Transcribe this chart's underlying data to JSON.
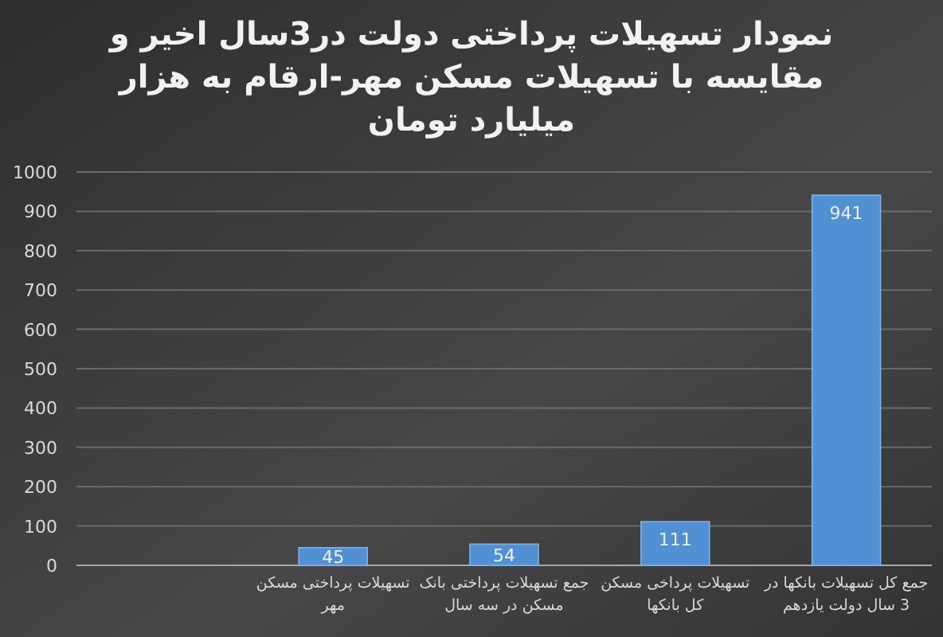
{
  "chart_data": {
    "type": "bar",
    "title": "نمودار تسهیلات پرداختی دولت در3سال اخیر و مقایسه با تسهیلات مسکن مهر-ارقام به هزار میلیارد تومان",
    "categories": [
      null,
      "تسهیلات پرداختی مسکن مهر",
      "جمع تسهیلات پرداختی بانک مسکن در سه سال",
      "تسهیلات پرداخی مسکن کل بانکها",
      "جمع کل تسهیلات بانکها در 3 سال دولت یازدهم"
    ],
    "values": [
      null,
      45,
      54,
      111,
      941
    ],
    "color": "#5090d3",
    "ylim": [
      0,
      1000
    ],
    "yticks": [
      0,
      100,
      200,
      300,
      400,
      500,
      600,
      700,
      800,
      900,
      1000
    ],
    "grid": "y",
    "data_labels": true
  }
}
